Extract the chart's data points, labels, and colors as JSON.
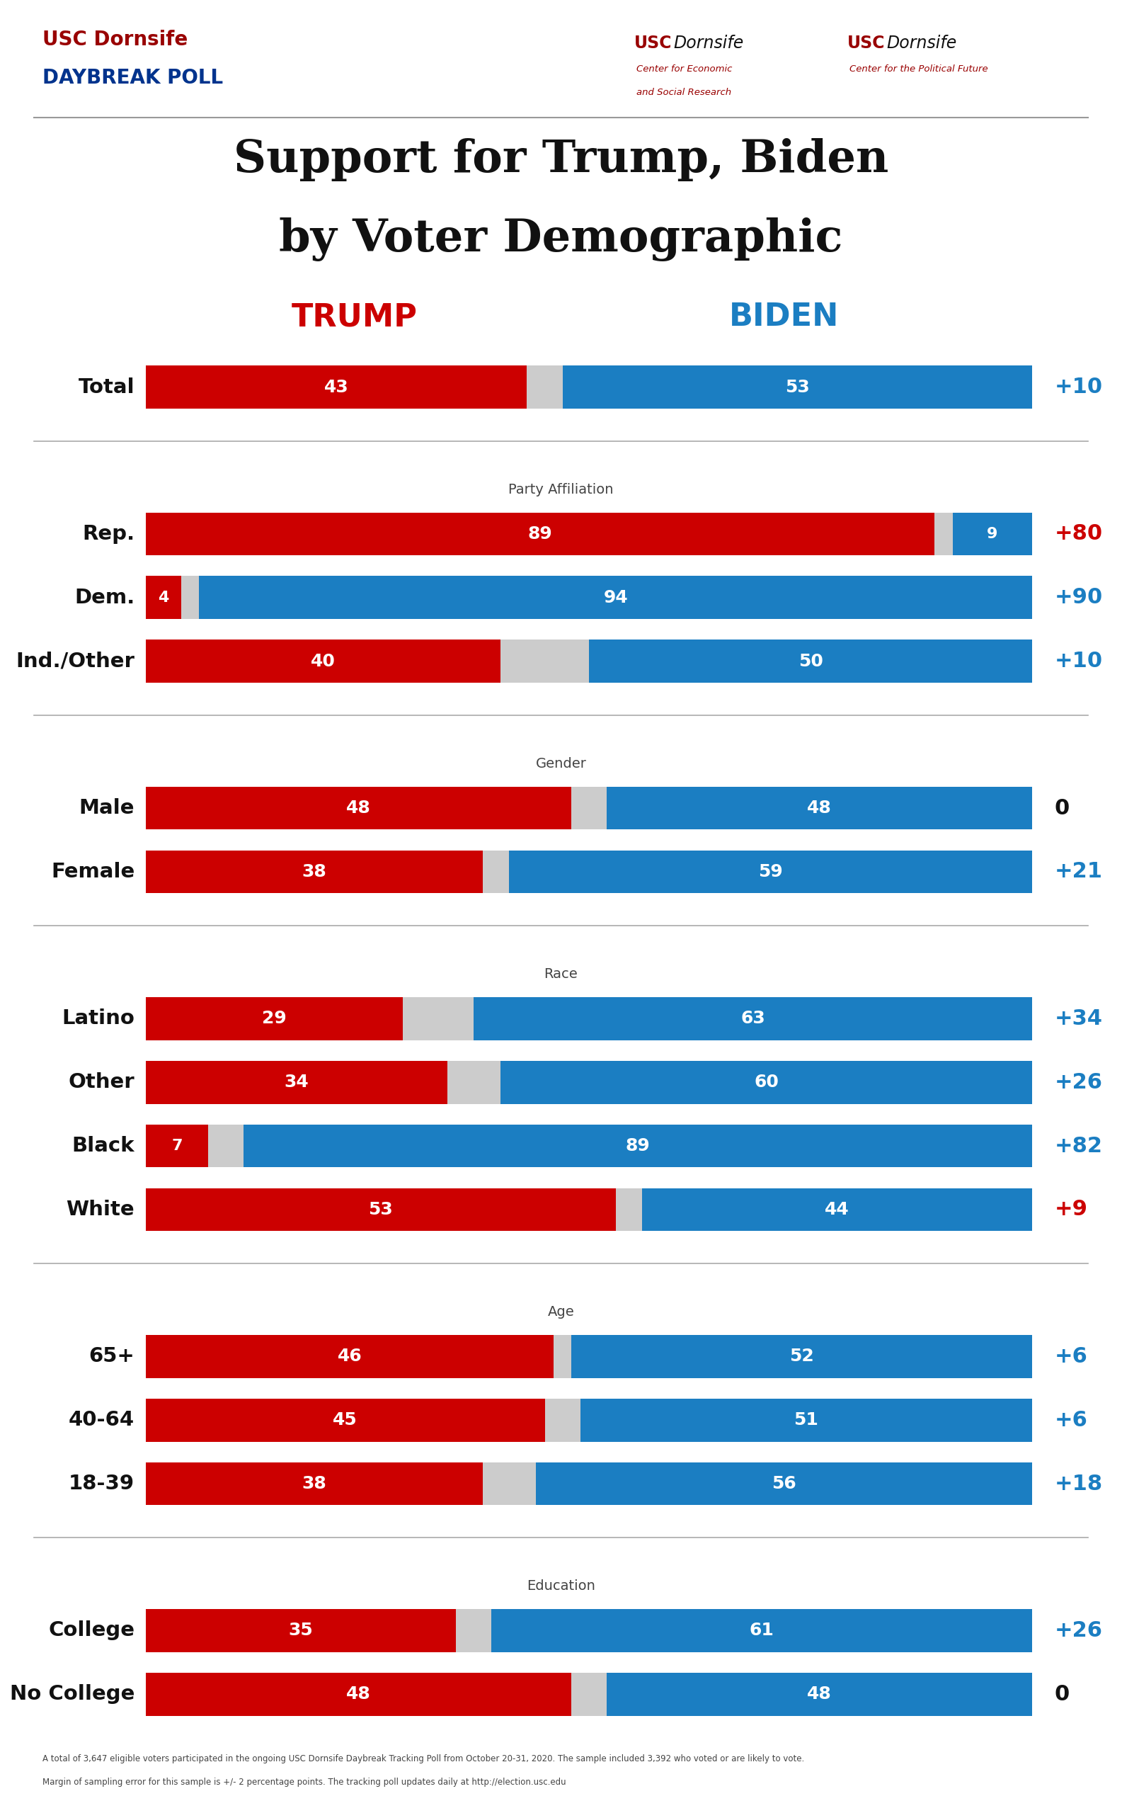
{
  "title_line1": "Support for Trump, Biden",
  "title_line2": "by Voter Demographic",
  "trump_label": "TRUMP",
  "biden_label": "BIDEN",
  "trump_color": "#CC0000",
  "biden_color": "#1B7EC2",
  "gap_color": "#CCCCCC",
  "background_color": "#FFFFFF",
  "categories": [
    {
      "label": "Total",
      "trump": 43,
      "biden": 53,
      "diff": "+10",
      "diff_color": "blue",
      "group": "total"
    },
    {
      "label": "Rep.",
      "trump": 89,
      "biden": 9,
      "diff": "+80",
      "diff_color": "red",
      "group": "party"
    },
    {
      "label": "Dem.",
      "trump": 4,
      "biden": 94,
      "diff": "+90",
      "diff_color": "blue",
      "group": "party"
    },
    {
      "label": "Ind./Other",
      "trump": 40,
      "biden": 50,
      "diff": "+10",
      "diff_color": "blue",
      "group": "party"
    },
    {
      "label": "Male",
      "trump": 48,
      "biden": 48,
      "diff": "0",
      "diff_color": "black",
      "group": "gender"
    },
    {
      "label": "Female",
      "trump": 38,
      "biden": 59,
      "diff": "+21",
      "diff_color": "blue",
      "group": "gender"
    },
    {
      "label": "Latino",
      "trump": 29,
      "biden": 63,
      "diff": "+34",
      "diff_color": "blue",
      "group": "race"
    },
    {
      "label": "Other",
      "trump": 34,
      "biden": 60,
      "diff": "+26",
      "diff_color": "blue",
      "group": "race"
    },
    {
      "label": "Black",
      "trump": 7,
      "biden": 89,
      "diff": "+82",
      "diff_color": "blue",
      "group": "race"
    },
    {
      "label": "White",
      "trump": 53,
      "biden": 44,
      "diff": "+9",
      "diff_color": "red",
      "group": "race"
    },
    {
      "label": "65+",
      "trump": 46,
      "biden": 52,
      "diff": "+6",
      "diff_color": "blue",
      "group": "age"
    },
    {
      "label": "40-64",
      "trump": 45,
      "biden": 51,
      "diff": "+6",
      "diff_color": "blue",
      "group": "age"
    },
    {
      "label": "18-39",
      "trump": 38,
      "biden": 56,
      "diff": "+18",
      "diff_color": "blue",
      "group": "age"
    },
    {
      "label": "College",
      "trump": 35,
      "biden": 61,
      "diff": "+26",
      "diff_color": "blue",
      "group": "edu"
    },
    {
      "label": "No College",
      "trump": 48,
      "biden": 48,
      "diff": "0",
      "diff_color": "black",
      "group": "edu"
    }
  ],
  "group_headers": {
    "party": "Party Affiliation",
    "gender": "Gender",
    "race": "Race",
    "age": "Age",
    "edu": "Education"
  },
  "footer_text1": "A total of 3,647 eligible voters participated in the ongoing USC Dornsife Daybreak Tracking Poll from October 20-31, 2020. The sample included 3,392 who voted or are likely to vote.",
  "footer_text2": "Margin of sampling error for this sample is +/- 2 percentage points. The tracking poll updates daily at http://election.usc.edu",
  "usc_red": "#990000",
  "usc_blue": "#00338D"
}
